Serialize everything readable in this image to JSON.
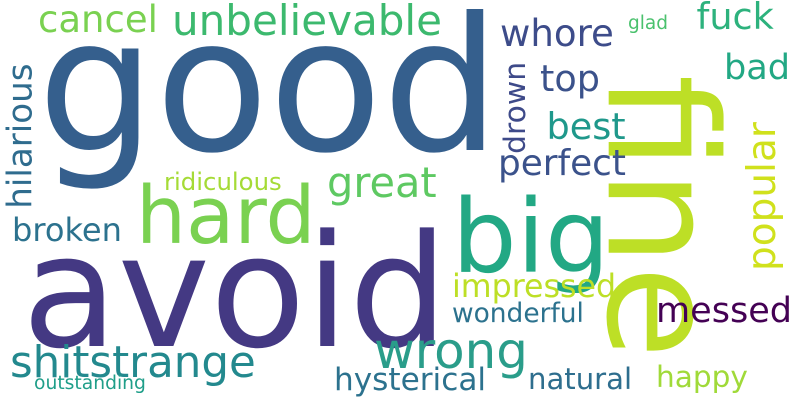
{
  "words": [
    {
      "text": "good",
      "color": "#355f8d"
    },
    {
      "text": "avoid",
      "color": "#443983"
    },
    {
      "text": "fine",
      "color": "#bddf26"
    },
    {
      "text": "big",
      "color": "#22a884"
    },
    {
      "text": "hard",
      "color": "#7ad151"
    },
    {
      "text": "wrong",
      "color": "#2a9d8a"
    },
    {
      "text": "shitstrange",
      "color": "#23898e"
    },
    {
      "text": "unbelievable",
      "color": "#3cb96e"
    },
    {
      "text": "cancel",
      "color": "#7ad151"
    },
    {
      "text": "whore",
      "color": "#3d4c8a"
    },
    {
      "text": "fuck",
      "color": "#2db27d"
    },
    {
      "text": "top",
      "color": "#3b528b"
    },
    {
      "text": "bad",
      "color": "#22a884"
    },
    {
      "text": "best",
      "color": "#1f988b"
    },
    {
      "text": "drown",
      "color": "#3e4a89"
    },
    {
      "text": "perfect",
      "color": "#3b528b"
    },
    {
      "text": "hilarious",
      "color": "#2f6c8e"
    },
    {
      "text": "great",
      "color": "#5ec962"
    },
    {
      "text": "ridiculous",
      "color": "#a5db36"
    },
    {
      "text": "popular",
      "color": "#d0e11c"
    },
    {
      "text": "broken",
      "color": "#2c728e"
    },
    {
      "text": "impressed",
      "color": "#bddf26"
    },
    {
      "text": "messed",
      "color": "#440154"
    },
    {
      "text": "wonderful",
      "color": "#2c728e"
    },
    {
      "text": "happy",
      "color": "#a0da39"
    },
    {
      "text": "hysterical",
      "color": "#2c728e"
    },
    {
      "text": "natural",
      "color": "#2e6e8e"
    },
    {
      "text": "outstanding",
      "color": "#1f9e89"
    },
    {
      "text": "glad",
      "color": "#4ac16d"
    }
  ]
}
